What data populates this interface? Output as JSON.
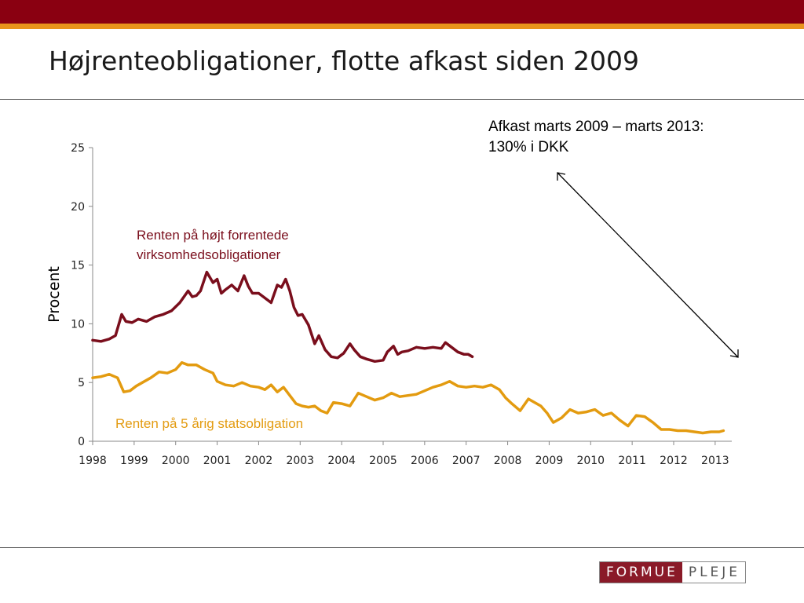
{
  "slide": {
    "title": "Højrenteobligationer, flotte afkast siden 2009",
    "annotation_line1": "Afkast marts 2009 – marts 2013:",
    "annotation_line2": "130% i DKK",
    "logo_part1": "FORMUE",
    "logo_part2": "PLEJE"
  },
  "colors": {
    "header_bar": "#8a0011",
    "header_stripe": "#e8941c",
    "series_high_yield": "#7a0e1c",
    "series_gov": "#e39b10"
  },
  "chart_data": {
    "type": "line",
    "ylabel": "Procent",
    "xlabel": "",
    "ylim": [
      0,
      25
    ],
    "xlim": [
      1998,
      2013.4
    ],
    "yticks": [
      0,
      5,
      10,
      15,
      20,
      25
    ],
    "xticks": [
      1998,
      1999,
      2000,
      2001,
      2002,
      2003,
      2004,
      2005,
      2006,
      2007,
      2008,
      2009,
      2010,
      2011,
      2012,
      2013
    ],
    "grid": false,
    "series": [
      {
        "name": "Renten på højt forrentede virksomhedsobligationer",
        "x": [
          1998.0,
          1998.2,
          1998.4,
          1998.55,
          1998.7,
          1998.8,
          1998.95,
          1999.1,
          1999.3,
          1999.5,
          1999.7,
          1999.9,
          2000.1,
          2000.3,
          2000.4,
          2000.5,
          2000.6,
          2000.75,
          2000.9,
          2001.0,
          2001.1,
          2001.2,
          2001.35,
          2001.5,
          2001.65,
          2001.75,
          2001.85,
          2002.0,
          2002.15,
          2002.3,
          2002.45,
          2002.55,
          2002.65,
          2002.75,
          2002.85,
          2002.95,
          2003.05,
          2003.2,
          2003.35,
          2003.45,
          2003.6,
          2003.75,
          2003.9,
          2004.05,
          2004.2,
          2004.3,
          2004.45,
          2004.6,
          2004.8,
          2005.0,
          2005.1,
          2005.25,
          2005.35,
          2005.45,
          2005.6,
          2005.8,
          2006.0,
          2006.2,
          2006.4,
          2006.5,
          2006.65,
          2006.8,
          2006.95,
          2007.05,
          2007.15
        ],
        "y": [
          8.6,
          8.5,
          8.7,
          9.0,
          10.8,
          10.2,
          10.1,
          10.4,
          10.2,
          10.6,
          10.8,
          11.1,
          11.8,
          12.8,
          12.3,
          12.4,
          12.8,
          14.4,
          13.5,
          13.8,
          12.6,
          12.9,
          13.3,
          12.8,
          14.1,
          13.2,
          12.6,
          12.6,
          12.2,
          11.8,
          13.3,
          13.1,
          13.8,
          12.8,
          11.4,
          10.7,
          10.8,
          9.9,
          8.3,
          9.0,
          7.8,
          7.2,
          7.1,
          7.5,
          8.3,
          7.8,
          7.2,
          7.0,
          6.8,
          6.9,
          7.6,
          8.1,
          7.4,
          7.6,
          7.7,
          8.0,
          7.9,
          8.0,
          7.9,
          8.4,
          8.0,
          7.6,
          7.4,
          7.4,
          7.2
        ]
      },
      {
        "name": "Renten på 5 årig statsobligation",
        "x": [
          1998.0,
          1998.2,
          1998.4,
          1998.6,
          1998.75,
          1998.9,
          1999.05,
          1999.2,
          1999.4,
          1999.6,
          1999.8,
          2000.0,
          2000.15,
          2000.3,
          2000.5,
          2000.7,
          2000.9,
          2001.0,
          2001.2,
          2001.4,
          2001.6,
          2001.8,
          2002.0,
          2002.15,
          2002.3,
          2002.45,
          2002.6,
          2002.75,
          2002.9,
          2003.05,
          2003.2,
          2003.35,
          2003.5,
          2003.65,
          2003.8,
          2004.0,
          2004.2,
          2004.4,
          2004.6,
          2004.8,
          2005.0,
          2005.2,
          2005.4,
          2005.6,
          2005.8,
          2006.0,
          2006.2,
          2006.4,
          2006.6,
          2006.8,
          2007.0,
          2007.2,
          2007.4,
          2007.6,
          2007.8,
          2007.95,
          2008.1,
          2008.3,
          2008.5,
          2008.6,
          2008.8,
          2008.95,
          2009.1,
          2009.3,
          2009.5,
          2009.7,
          2009.9,
          2010.1,
          2010.3,
          2010.5,
          2010.7,
          2010.9,
          2011.1,
          2011.3,
          2011.5,
          2011.7,
          2011.9,
          2012.1,
          2012.3,
          2012.5,
          2012.7,
          2012.9,
          2013.1,
          2013.2
        ],
        "y": [
          5.4,
          5.5,
          5.7,
          5.4,
          4.2,
          4.3,
          4.7,
          5.0,
          5.4,
          5.9,
          5.8,
          6.1,
          6.7,
          6.5,
          6.5,
          6.1,
          5.8,
          5.1,
          4.8,
          4.7,
          5.0,
          4.7,
          4.6,
          4.4,
          4.8,
          4.2,
          4.6,
          3.9,
          3.2,
          3.0,
          2.9,
          3.0,
          2.6,
          2.4,
          3.3,
          3.2,
          3.0,
          4.1,
          3.8,
          3.5,
          3.7,
          4.1,
          3.8,
          3.9,
          4.0,
          4.3,
          4.6,
          4.8,
          5.1,
          4.7,
          4.6,
          4.7,
          4.6,
          4.8,
          4.4,
          3.7,
          3.2,
          2.6,
          3.6,
          3.4,
          3.0,
          2.4,
          1.6,
          2.0,
          2.7,
          2.4,
          2.5,
          2.7,
          2.2,
          2.4,
          1.8,
          1.3,
          2.2,
          2.1,
          1.6,
          1.0,
          1.0,
          0.9,
          0.9,
          0.8,
          0.7,
          0.8,
          0.8,
          0.9
        ]
      }
    ],
    "annotations": [
      {
        "text_line1": "Renten på højt forrentede",
        "text_line2": "virksomhedsobligationer",
        "color": "#7a0e1c"
      },
      {
        "text": "Renten på 5 årig statsobligation",
        "color": "#e39b10"
      }
    ]
  }
}
